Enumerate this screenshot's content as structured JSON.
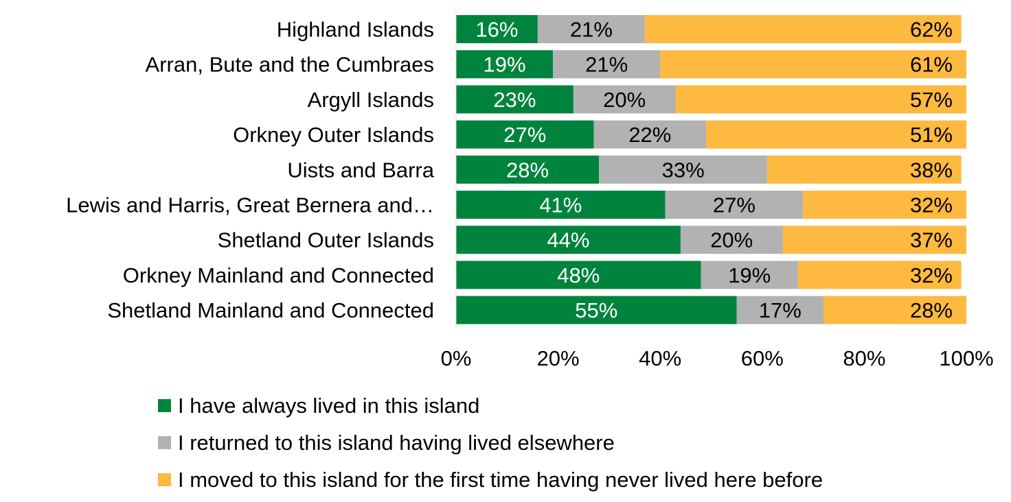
{
  "chart_data": {
    "type": "bar",
    "orientation": "horizontal",
    "stacked": true,
    "title": "",
    "xlabel": "",
    "ylabel": "",
    "categories": [
      "Highland Islands",
      "Arran, Bute and the Cumbraes",
      "Argyll Islands",
      "Orkney Outer Islands",
      "Uists and Barra",
      "Lewis and Harris, Great Bernera and…",
      "Shetland Outer Islands",
      "Orkney Mainland and Connected",
      "Shetland Mainland and Connected"
    ],
    "series": [
      {
        "name": "I have always lived in this island",
        "color": "#00843D",
        "label_color": "#ffffff",
        "values": [
          16,
          19,
          23,
          27,
          28,
          41,
          44,
          48,
          55
        ]
      },
      {
        "name": "I returned to this island having lived elsewhere",
        "color": "#B2B2B2",
        "label_color": "#000000",
        "values": [
          21,
          21,
          20,
          22,
          33,
          27,
          20,
          19,
          17
        ]
      },
      {
        "name": "I moved to this island for the first time having never lived here before",
        "color": "#FDB940",
        "label_color": "#000000",
        "values": [
          62,
          61,
          57,
          51,
          38,
          32,
          37,
          32,
          28
        ]
      }
    ],
    "xlim": [
      0,
      100
    ],
    "xticks": [
      0,
      20,
      40,
      60,
      80,
      100
    ],
    "tick_suffix": "%",
    "legend_position": "bottom",
    "grid": false
  }
}
